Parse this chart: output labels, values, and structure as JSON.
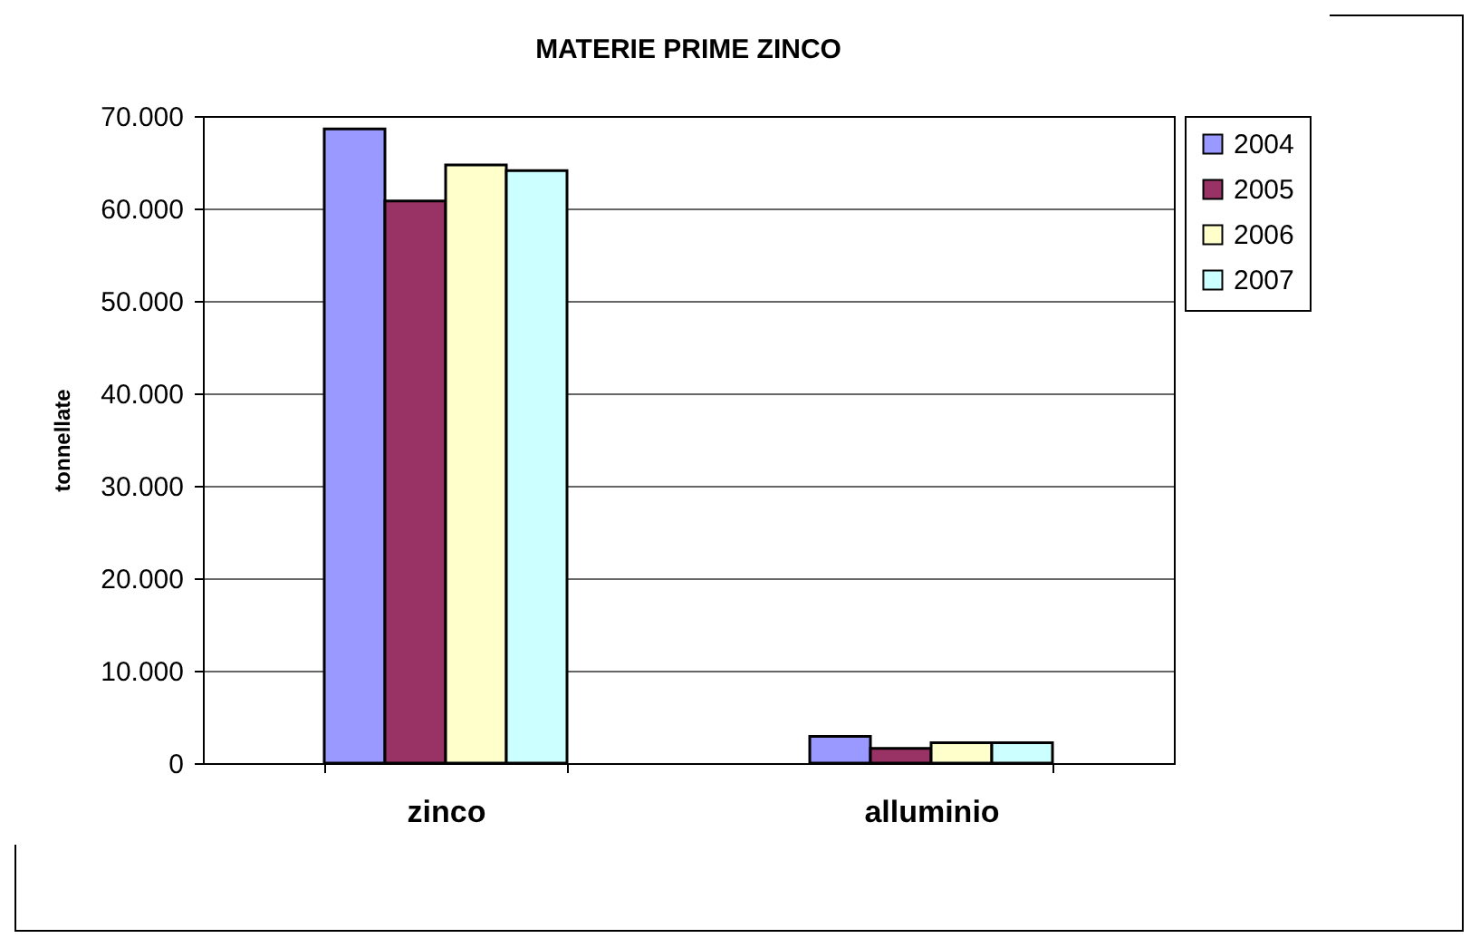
{
  "chart_data": {
    "type": "bar",
    "title": "MATERIE PRIME ZINCO",
    "ylabel": "tonnellate",
    "categories": [
      "zinco",
      "alluminio"
    ],
    "series": [
      {
        "name": "2004",
        "color": "#9999ff",
        "values": [
          68600,
          2900
        ]
      },
      {
        "name": "2005",
        "color": "#993366",
        "values": [
          60800,
          1600
        ]
      },
      {
        "name": "2006",
        "color": "#ffffcc",
        "values": [
          64700,
          2200
        ]
      },
      {
        "name": "2007",
        "color": "#ccffff",
        "values": [
          64100,
          2200
        ]
      }
    ],
    "ylim": [
      0,
      70000
    ],
    "yticks": [
      {
        "value": 0,
        "label": "0"
      },
      {
        "value": 10000,
        "label": "10.000"
      },
      {
        "value": 20000,
        "label": "20.000"
      },
      {
        "value": 30000,
        "label": "30.000"
      },
      {
        "value": 40000,
        "label": "40.000"
      },
      {
        "value": 50000,
        "label": "50.000"
      },
      {
        "value": 60000,
        "label": "60.000"
      },
      {
        "value": 70000,
        "label": "70.000"
      }
    ],
    "grid": "y",
    "legend": "right"
  }
}
